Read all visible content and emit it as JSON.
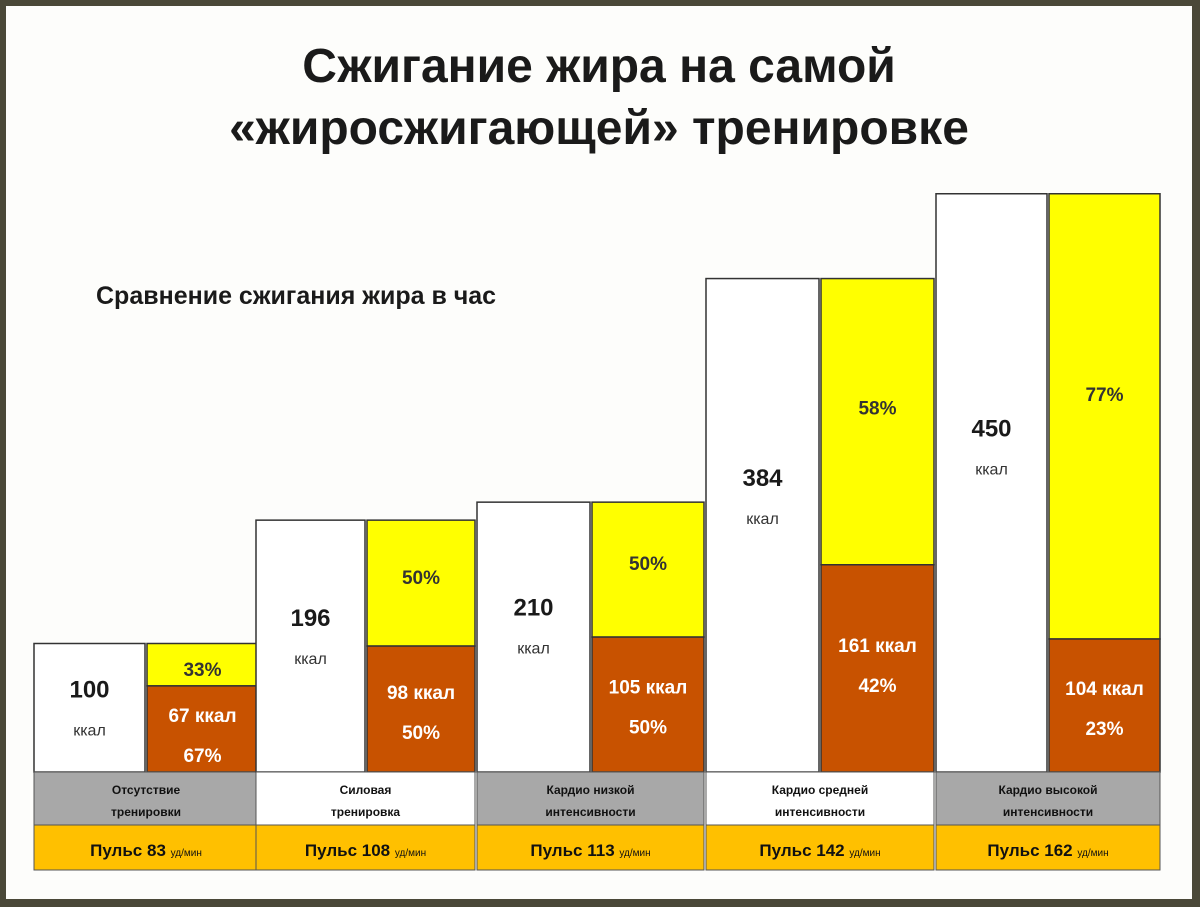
{
  "title_line1": "Сжигание жира на самой",
  "title_line2": "«жиросжигающей» тренировке",
  "subtitle": "Сравнение сжигания жира в час",
  "colors": {
    "total": "#ffffff",
    "other": "#ffff00",
    "fat": "#c85200",
    "category_bg_alt": "#a8a8a8",
    "pulse_bg": "#ffc000"
  },
  "chart_data": {
    "type": "bar",
    "categories": [
      {
        "line1": "Отсутствие",
        "line2": "тренировки"
      },
      {
        "line1": "Силовая",
        "line2": "тренировка"
      },
      {
        "line1": "Кардио низкой",
        "line2": "интенсивности"
      },
      {
        "line1": "Кардио средней",
        "line2": "интенсивности"
      },
      {
        "line1": "Кардио высокой",
        "line2": "интенсивности"
      }
    ],
    "pulse": [
      {
        "label": "Пульс 83",
        "unit": "уд/мин"
      },
      {
        "label": "Пульс 108",
        "unit": "уд/мин"
      },
      {
        "label": "Пульс 113",
        "unit": "уд/мин"
      },
      {
        "label": "Пульс 142",
        "unit": "уд/мин"
      },
      {
        "label": "Пульс 162",
        "unit": "уд/мин"
      }
    ],
    "total_kcal": [
      100,
      196,
      210,
      384,
      450
    ],
    "total_unit": "ккал",
    "fat_kcal": [
      67,
      98,
      105,
      161,
      104
    ],
    "fat_kcal_labels": [
      "67 ккал",
      "98 ккал",
      "105 ккал",
      "161 ккал",
      "104 ккал"
    ],
    "fat_percent": [
      67,
      50,
      50,
      42,
      23
    ],
    "fat_percent_labels": [
      "67%",
      "50%",
      "50%",
      "42%",
      "23%"
    ],
    "other_percent": [
      33,
      50,
      50,
      58,
      77
    ],
    "other_percent_labels": [
      "33%",
      "50%",
      "50%",
      "58%",
      "77%"
    ]
  }
}
